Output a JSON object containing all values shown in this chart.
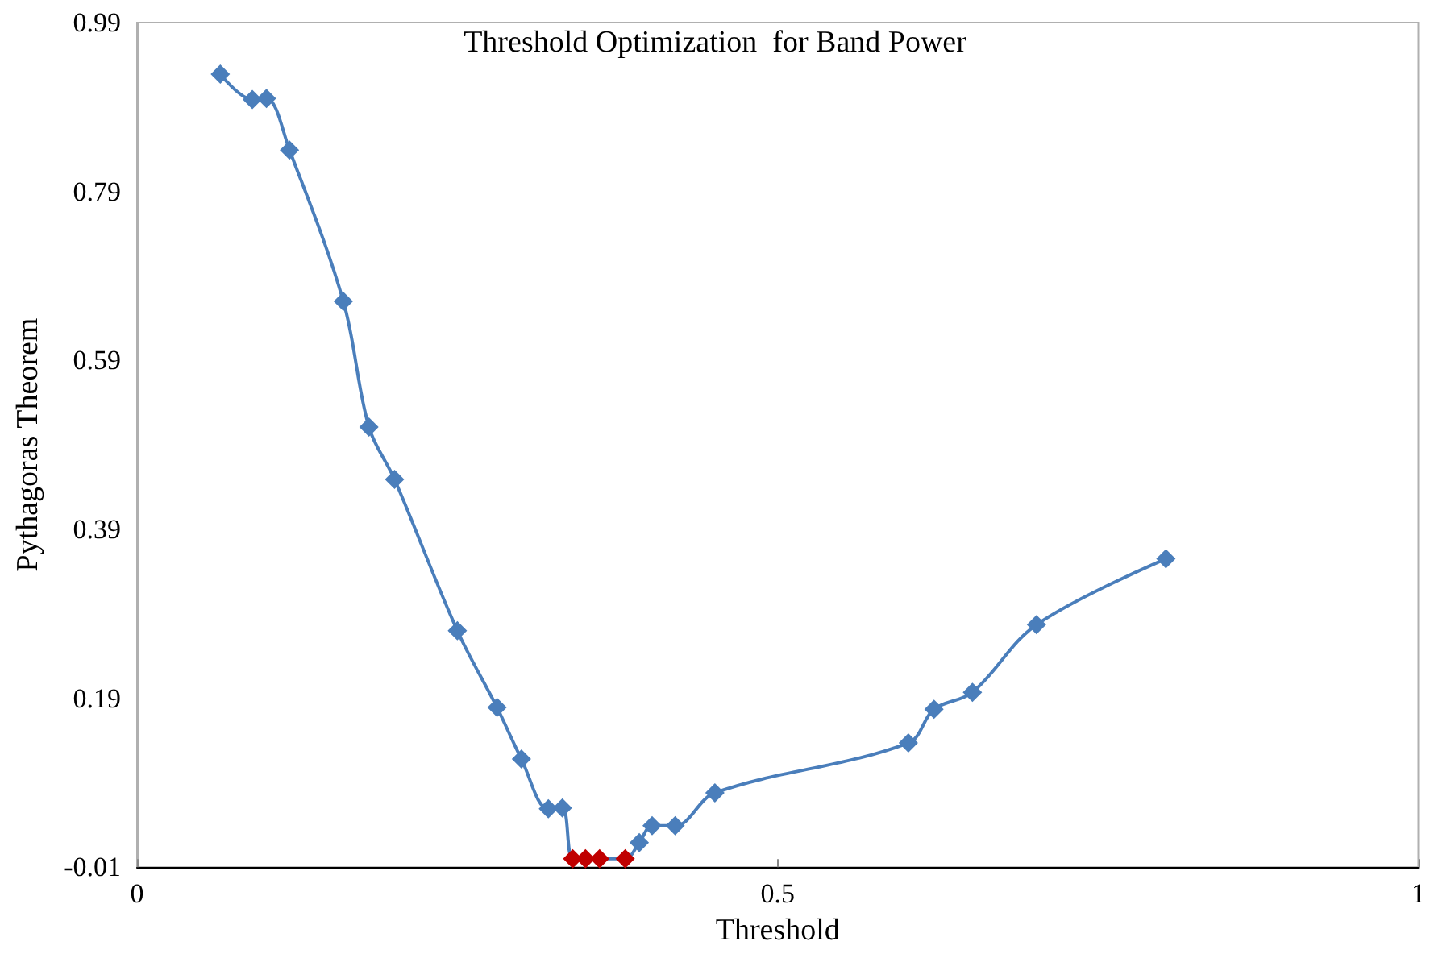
{
  "chart_data": {
    "type": "line",
    "title": "Threshold Optimization  for Band Power",
    "xlabel": "Threshold",
    "ylabel": "Pythagoras Theorem",
    "xlim": [
      0,
      1
    ],
    "xticks": [
      0,
      0.5,
      1
    ],
    "ylim": [
      -0.01,
      0.99
    ],
    "yticks": [
      -0.01,
      0.19,
      0.39,
      0.59,
      0.79,
      0.99
    ],
    "grid": false,
    "marker": "diamond",
    "line_style": "solid",
    "series": [
      {
        "color": "#4a7ebb",
        "x": [
          0.065,
          0.09,
          0.101,
          0.119,
          0.161,
          0.181,
          0.201,
          0.25,
          0.281,
          0.3,
          0.321,
          0.332,
          0.34,
          0.35,
          0.361,
          0.381,
          0.392,
          0.402,
          0.42,
          0.451,
          0.602,
          0.622,
          0.652,
          0.702,
          0.803
        ],
        "values": [
          0.929,
          0.899,
          0.9,
          0.839,
          0.66,
          0.511,
          0.449,
          0.27,
          0.179,
          0.118,
          0.059,
          0.06,
          0,
          0,
          0,
          0,
          0.019,
          0.039,
          0.039,
          0.078,
          0.137,
          0.177,
          0.197,
          0.277,
          0.355
        ],
        "colors": [
          "#4a7ebb",
          "#4a7ebb",
          "#4a7ebb",
          "#4a7ebb",
          "#4a7ebb",
          "#4a7ebb",
          "#4a7ebb",
          "#4a7ebb",
          "#4a7ebb",
          "#4a7ebb",
          "#4a7ebb",
          "#4a7ebb",
          "#c00000",
          "#c00000",
          "#c00000",
          "#c00000",
          "#4a7ebb",
          "#4a7ebb",
          "#4a7ebb",
          "#4a7ebb",
          "#4a7ebb",
          "#4a7ebb",
          "#4a7ebb",
          "#4a7ebb",
          "#4a7ebb"
        ]
      }
    ]
  }
}
